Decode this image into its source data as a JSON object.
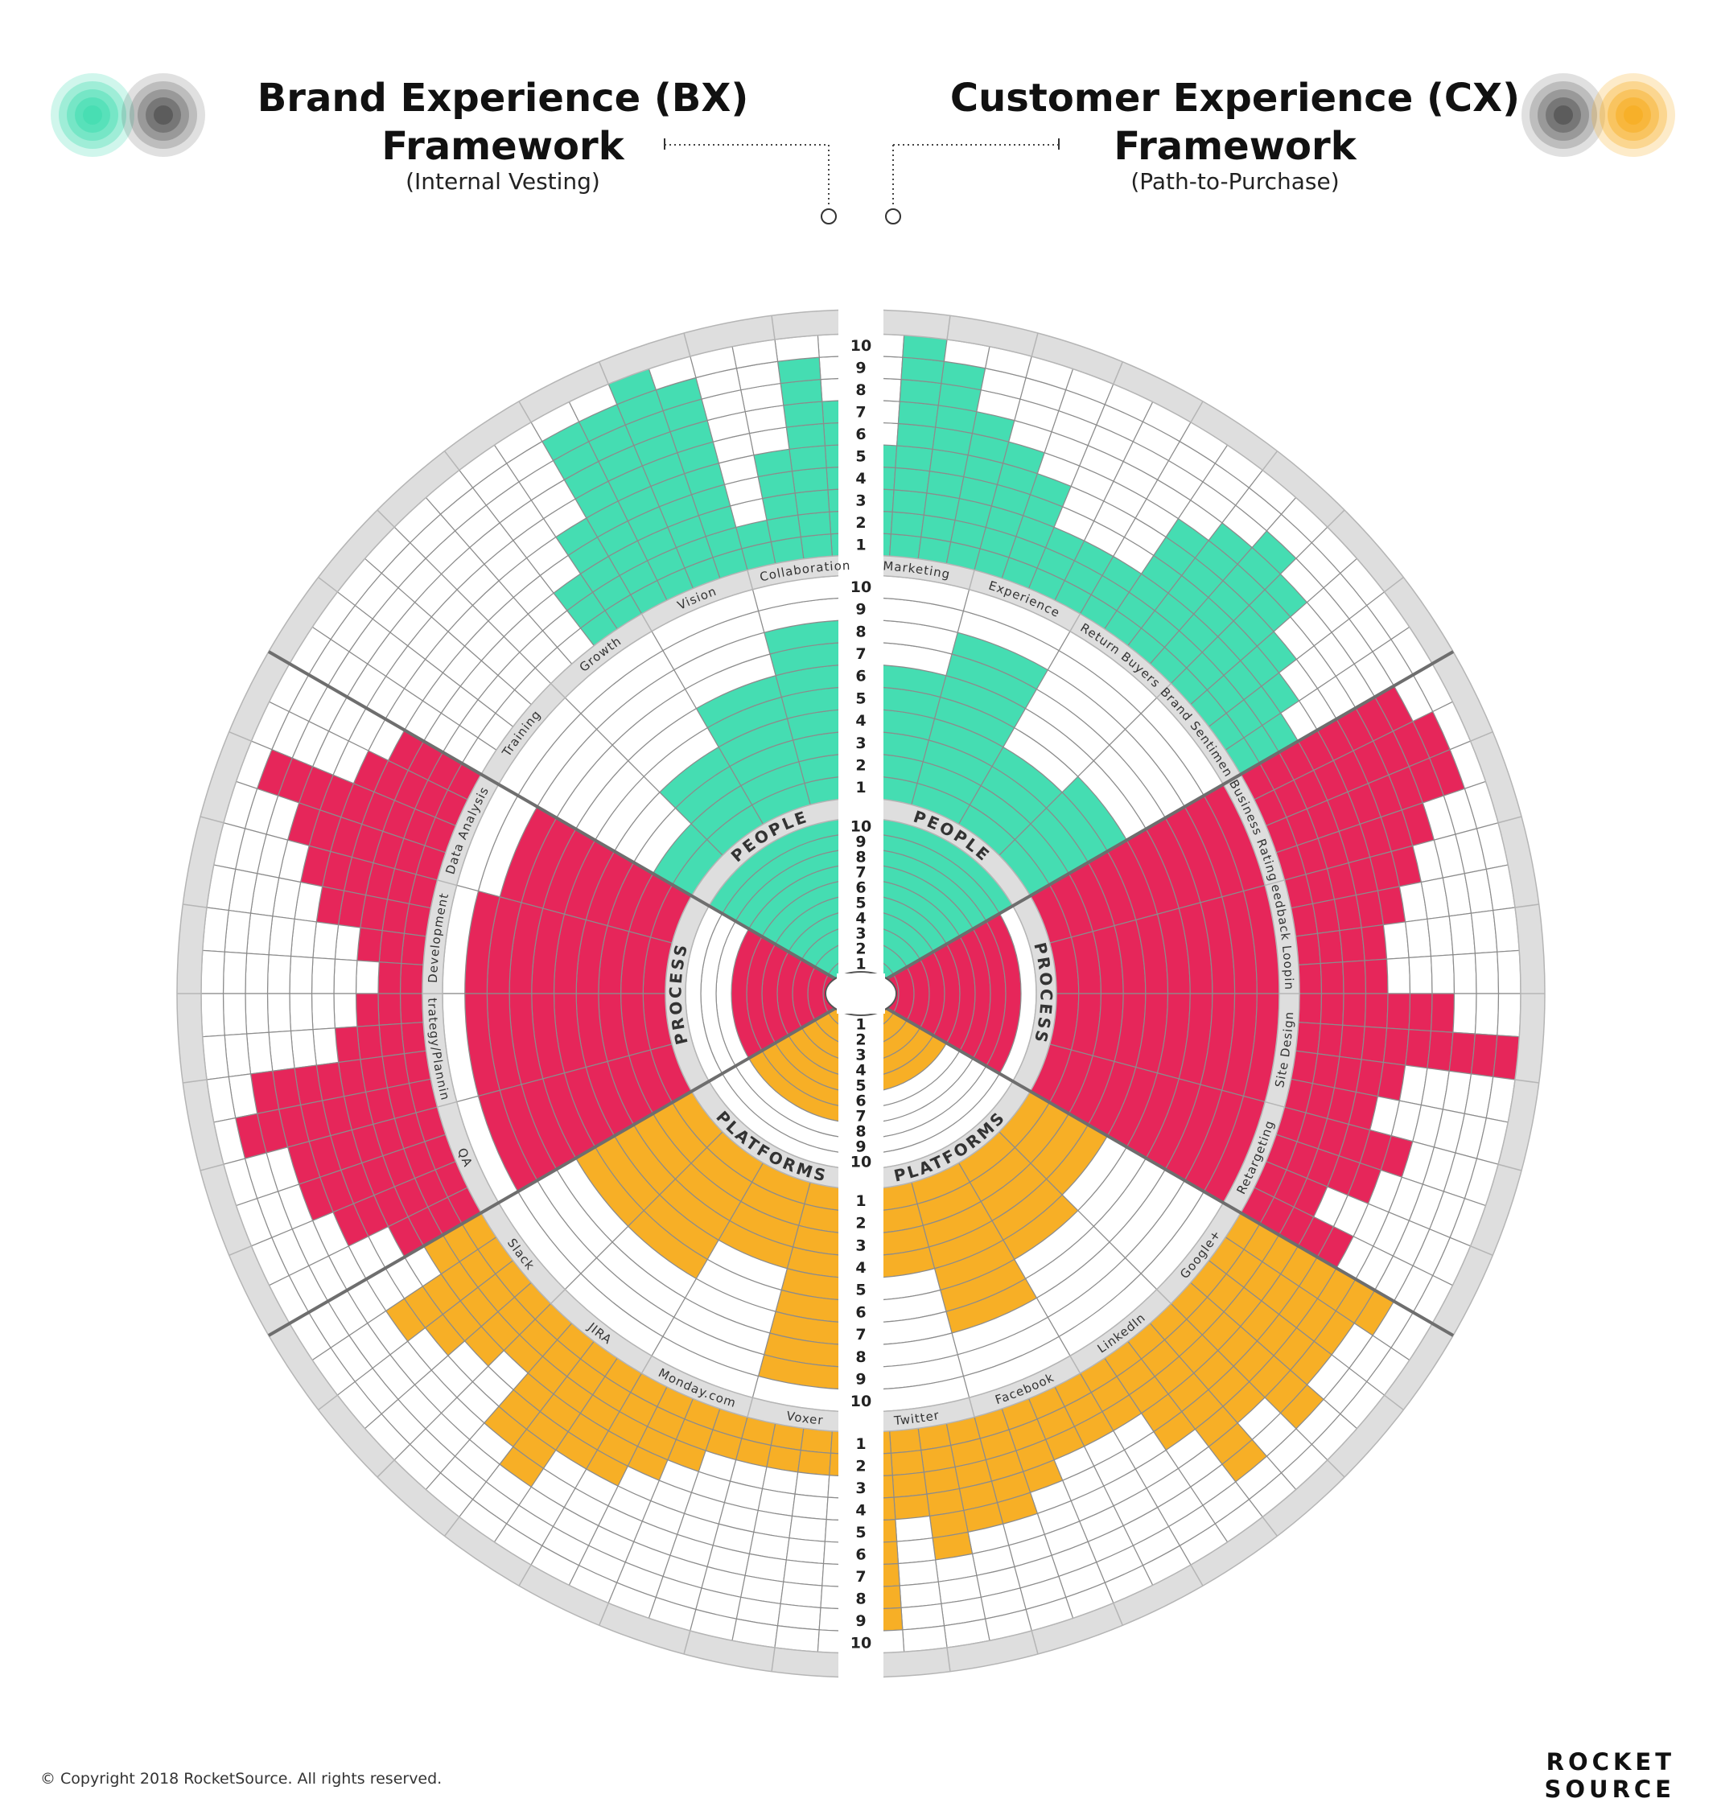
{
  "header": {
    "left": {
      "title_line1": "Brand Experience (BX)",
      "title_line2": "Framework",
      "subtitle": "(Internal Vesting)"
    },
    "right": {
      "title_line1": "Customer Experience (CX)",
      "title_line2": "Framework",
      "subtitle": "(Path-to-Purchase)"
    }
  },
  "colors": {
    "people": "#45DDB2",
    "process": "#E6265A",
    "platforms": "#F7AF26",
    "band": "#DEDEDE",
    "band_stroke": "#B5B5B5",
    "cell_stroke": "#8C8C8C",
    "divider": "#6E6E6E",
    "bx_icon": "#45DDB2",
    "cx_icon": "#F7AF26",
    "neutral_icon": "#555555"
  },
  "scale_labels": {
    "top_outer": [
      "10",
      "9",
      "8",
      "7",
      "6",
      "5",
      "4",
      "3",
      "2",
      "1"
    ],
    "top_middle": [
      "10",
      "9",
      "8",
      "7",
      "6",
      "5",
      "4",
      "3",
      "2",
      "1"
    ],
    "top_inner": [
      "10",
      "9",
      "8",
      "7",
      "6",
      "5",
      "4",
      "3",
      "2",
      "1"
    ],
    "bottom_inner": [
      "1",
      "2",
      "3",
      "4",
      "5",
      "6",
      "7",
      "8",
      "9",
      "10"
    ],
    "bottom_middle": [
      "1",
      "2",
      "3",
      "4",
      "5",
      "6",
      "7",
      "8",
      "9",
      "10"
    ],
    "bottom_outer": [
      "1",
      "2",
      "3",
      "4",
      "5",
      "6",
      "7",
      "8",
      "9",
      "10"
    ]
  },
  "bx": {
    "section_labels": {
      "people": "PEOPLE",
      "process": "PROCESS",
      "platforms": "PLATFORMS"
    },
    "segment_labels": {
      "people": [
        "Collaboration",
        "Vision",
        "Growth",
        "Training"
      ],
      "process": [
        "Data Analysis",
        "Development",
        "Strategy/Planning",
        "QA"
      ],
      "platforms": [
        "Slack",
        "JIRA",
        "Monday.com",
        "Voxer"
      ]
    }
  },
  "cx": {
    "section_labels": {
      "people": "PEOPLE",
      "process": "PROCESS",
      "platforms": "PLATFORMS"
    },
    "segment_labels": {
      "people": [
        "Marketing",
        "Experience",
        "Return Buyers",
        "Brand Sentiment"
      ],
      "process": [
        "Business Rating",
        "Feedback Looping",
        "Site Design",
        "Retargeting"
      ],
      "platforms": [
        "Google+",
        "LinkedIn",
        "Facebook",
        "Twitter"
      ]
    }
  },
  "chart_data": [
    {
      "type": "radial-bar",
      "title": "Brand Experience (BX) Framework",
      "levels_max": 10,
      "sections": [
        {
          "name": "PEOPLE",
          "inner": 10,
          "middle": [
            8,
            6,
            4,
            2
          ],
          "outer": [
            7,
            9,
            5,
            2,
            9,
            10,
            9,
            9,
            5,
            3,
            0,
            0,
            0,
            0,
            0,
            0
          ]
        },
        {
          "name": "PROCESS",
          "inner": 7,
          "middle": [
            8,
            9,
            9,
            9
          ],
          "outer": [
            4,
            5,
            9,
            7,
            6,
            5,
            3,
            2,
            3,
            4,
            8,
            9,
            7,
            7,
            6,
            4
          ]
        },
        {
          "name": "PLATFORMS",
          "inner": 7,
          "middle": [
            6,
            6,
            4,
            9
          ],
          "outer": [
            3,
            6,
            5,
            4,
            3,
            6,
            7,
            5,
            5,
            4,
            3,
            2,
            2,
            2,
            2,
            2
          ]
        }
      ]
    },
    {
      "type": "radial-bar",
      "title": "Customer Experience (CX) Framework",
      "levels_max": 10,
      "sections": [
        {
          "name": "PEOPLE",
          "inner": 10,
          "middle": [
            6,
            8,
            4,
            5
          ],
          "outer": [
            5,
            10,
            9,
            7,
            6,
            5,
            3,
            3,
            3,
            6,
            7,
            8,
            7,
            5,
            4,
            3
          ]
        },
        {
          "name": "PROCESS",
          "inner": 9,
          "middle": [
            10,
            10,
            10,
            10
          ],
          "outer": [
            8,
            9,
            9,
            7,
            6,
            5,
            4,
            4,
            7,
            10,
            5,
            4,
            6,
            5,
            3,
            5
          ]
        },
        {
          "name": "PLATFORMS",
          "inner": 5,
          "middle": [
            4,
            5,
            7,
            4
          ],
          "outer": [
            8,
            7,
            7,
            8,
            6,
            8,
            5,
            3,
            3,
            3,
            4,
            5,
            5,
            6,
            4,
            9
          ]
        }
      ]
    }
  ],
  "footer": {
    "copyright": "© Copyright 2018 RocketSource. All rights reserved.",
    "logo_line1": "ROCKET",
    "logo_line2": "SOURCE"
  }
}
